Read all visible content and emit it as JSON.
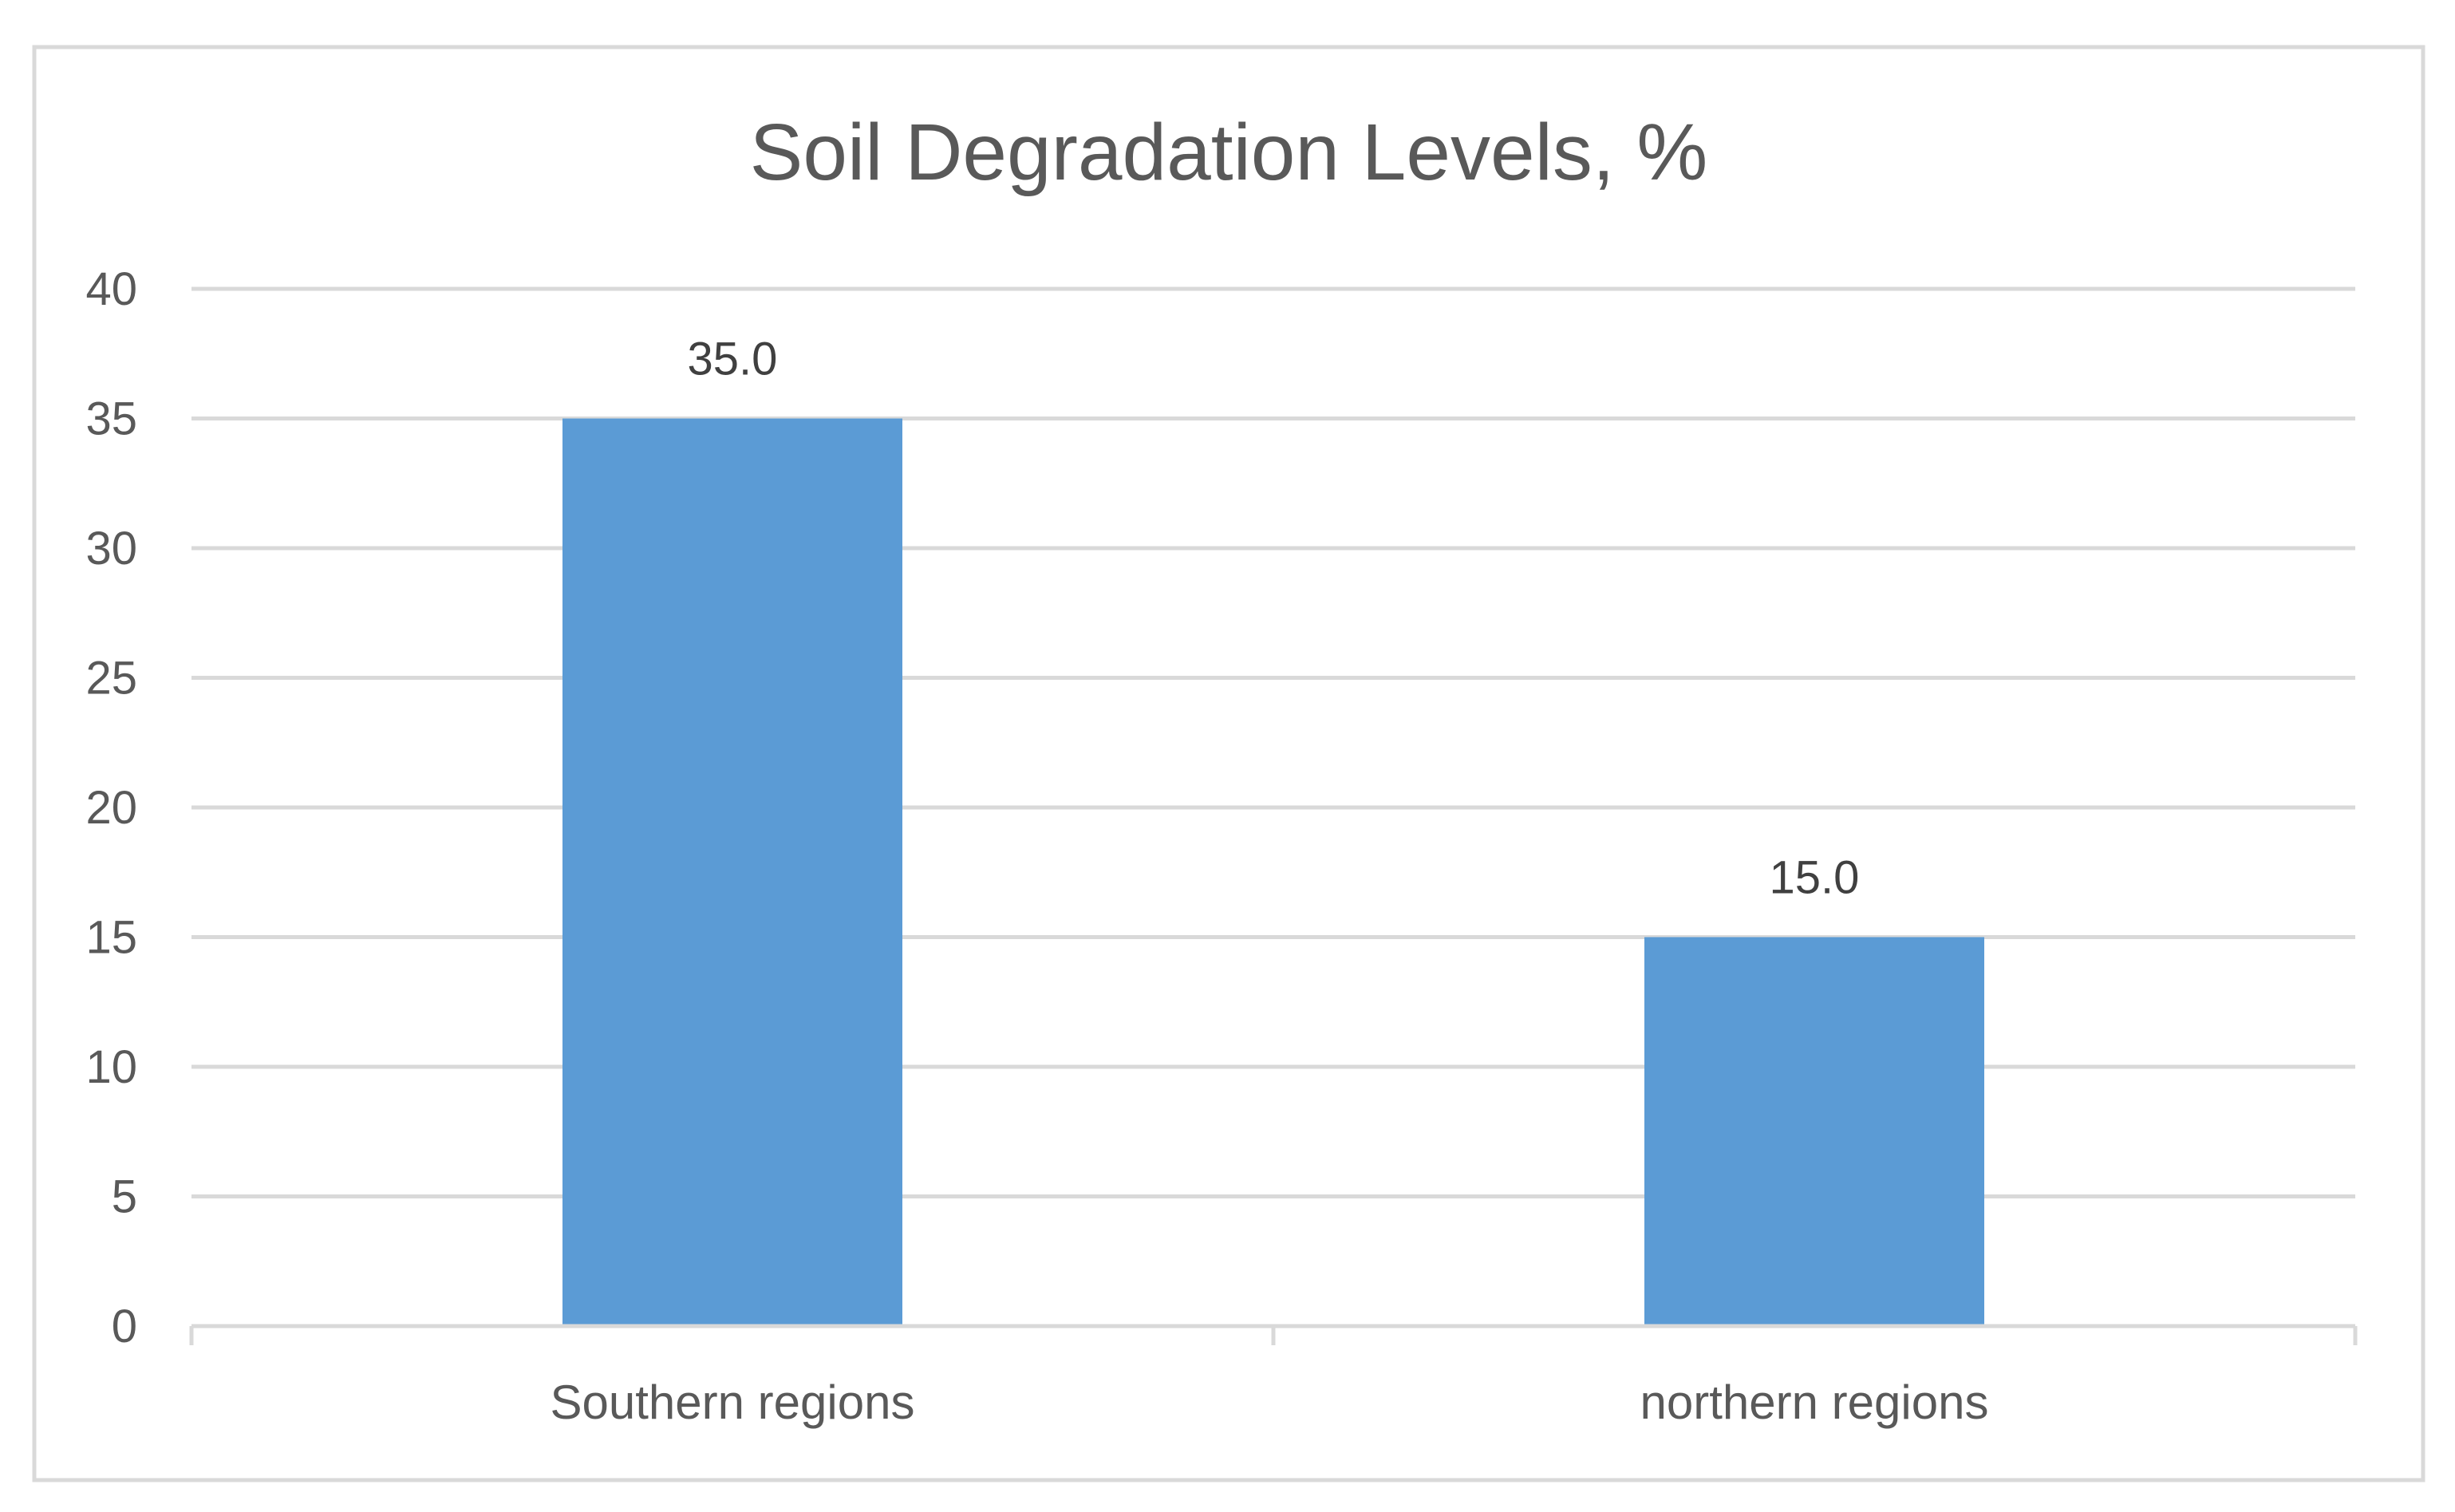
{
  "chart_data": {
    "type": "bar",
    "title": "Soil Degradation Levels, %",
    "categories": [
      "Southern regions",
      "northern regions"
    ],
    "values": [
      35.0,
      15.0
    ],
    "data_labels": [
      "35.0",
      "15.0"
    ],
    "y_ticks": [
      "0",
      "5",
      "10",
      "15",
      "20",
      "25",
      "30",
      "35",
      "40"
    ],
    "ylim": [
      0,
      40
    ],
    "ytick_step": 5,
    "xlabel": "",
    "ylabel": "",
    "grid": true,
    "legend": "none",
    "colors": {
      "bar": "#5B9BD5",
      "grid": "#D9D9D9",
      "border": "#D9D9D9",
      "text": "#595959",
      "title": "#595959",
      "data_label": "#404040"
    }
  }
}
